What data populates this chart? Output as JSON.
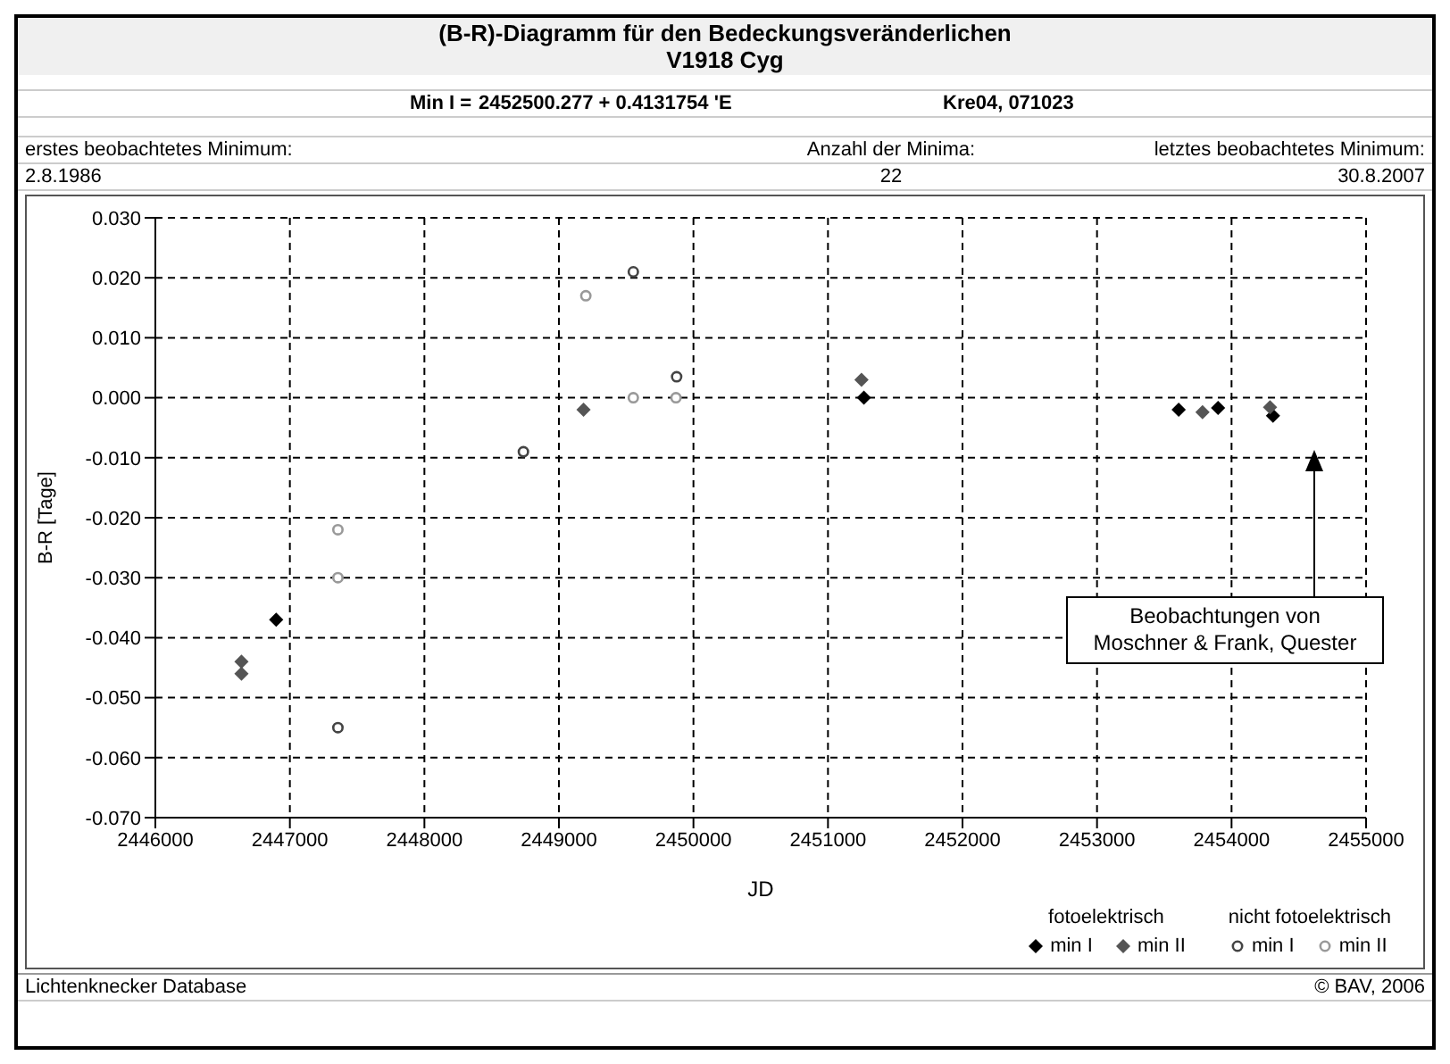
{
  "chart_data": {
    "type": "scatter",
    "title": "(B-R)-Diagramm für den Bedeckungsveränderlichen",
    "subtitle": "V1918 Cyg",
    "xlabel": "JD",
    "ylabel": "B-R [Tage]",
    "xlim": [
      2446000,
      2455000
    ],
    "xticks": [
      2446000,
      2447000,
      2448000,
      2449000,
      2450000,
      2451000,
      2452000,
      2453000,
      2454000,
      2455000
    ],
    "ylim": [
      -0.07,
      0.03
    ],
    "yticks": [
      {
        "value": -0.07,
        "label": "-0.070"
      },
      {
        "value": -0.06,
        "label": "-0.060"
      },
      {
        "value": -0.05,
        "label": "-0.050"
      },
      {
        "value": -0.04,
        "label": "-0.040"
      },
      {
        "value": -0.03,
        "label": "-0.030"
      },
      {
        "value": -0.02,
        "label": "-0.020"
      },
      {
        "value": -0.01,
        "label": "-0.010"
      },
      {
        "value": 0,
        "label": "0.000"
      },
      {
        "value": 0.01,
        "label": "0.010"
      },
      {
        "value": 0.02,
        "label": "0.020"
      },
      {
        "value": 0.03,
        "label": "0.030"
      }
    ],
    "grid": true,
    "legend": "bottom right",
    "series": [
      {
        "name": "min I",
        "color": "#000000",
        "marker": "diamond",
        "x": [
          2446898,
          2451267,
          2453607,
          2453900,
          2454308
        ],
        "values": [
          -0.037,
          0.0,
          -0.002,
          -0.0017,
          -0.003
        ]
      },
      {
        "name": "min II",
        "color": "#555555",
        "marker": "diamond",
        "x": [
          2446640,
          2446640,
          2449183,
          2451249,
          2453784,
          2454286
        ],
        "values": [
          -0.044,
          -0.046,
          -0.002,
          0.003,
          -0.0024,
          -0.0016
        ]
      },
      {
        "name": "min I",
        "color": "#444444",
        "marker": "circle",
        "x": [
          2447357,
          2448736,
          2449553,
          2449875
        ],
        "values": [
          -0.055,
          -0.009,
          0.021,
          0.0035
        ]
      },
      {
        "name": "min II",
        "color": "#999999",
        "marker": "circle",
        "x": [
          2447357,
          2447357,
          2449200,
          2449553,
          2449870
        ],
        "values": [
          -0.022,
          -0.03,
          0.017,
          0.0,
          0.0
        ]
      }
    ],
    "annotations": [
      "Min I =",
      "2452500.277 + 0.4131754 'E",
      "Kre04, 071023",
      "erstes beobachtetes Minimum:",
      "2.8.1986",
      "Anzahl der Minima:",
      "22",
      "letztes beobachtetes Minimum:",
      "30.8.2007",
      "fotoelektrisch",
      "nicht fotoelektrisch",
      "Lichtenknecker Database",
      "© BAV, 2006",
      "Beobachtungen von Moschner & Frank, Quester"
    ]
  }
}
